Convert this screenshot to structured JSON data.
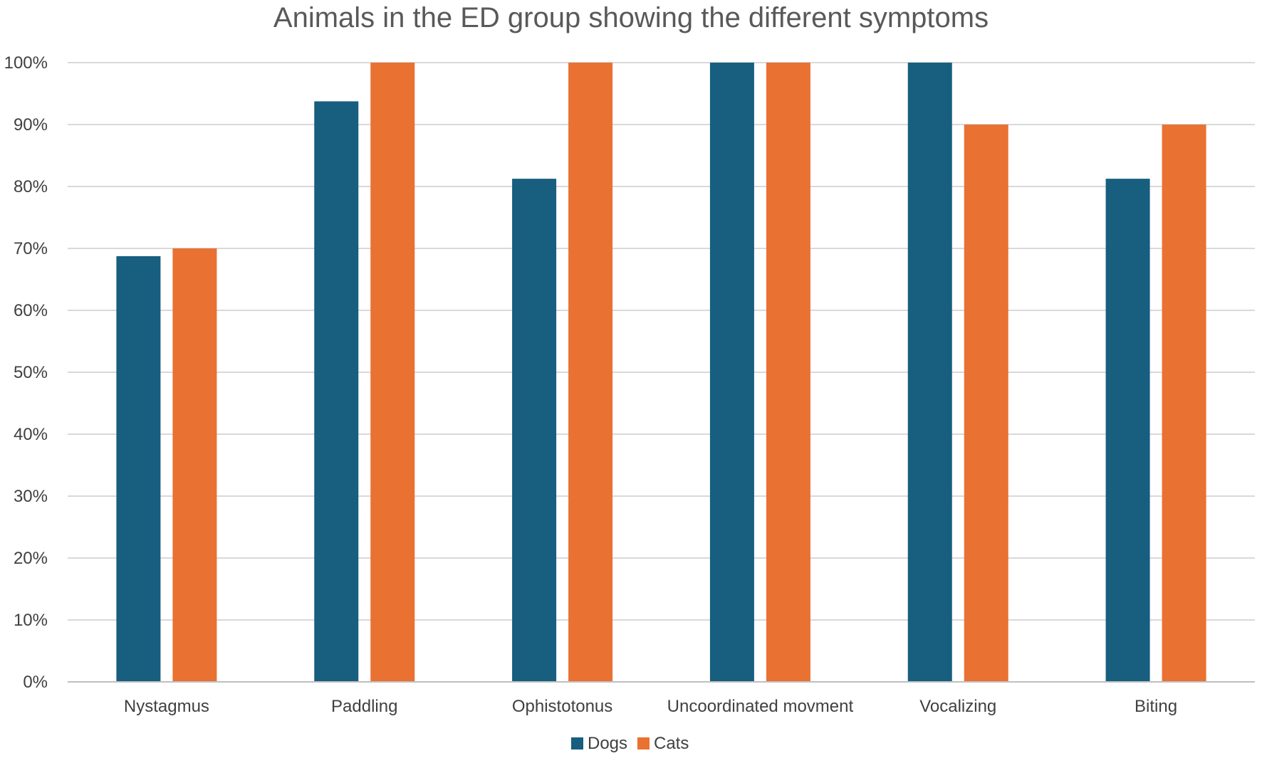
{
  "chart_data": {
    "type": "bar",
    "title": "Animals in the ED group showing the different symptoms",
    "xlabel": "",
    "ylabel": "",
    "categories": [
      "Nystagmus",
      "Paddling",
      "Ophistotonus",
      "Uncoordinated movment",
      "Vocalizing",
      "Biting"
    ],
    "series": [
      {
        "name": "Dogs",
        "color": "#175E7F",
        "values": [
          68.75,
          93.75,
          81.25,
          100,
          100,
          81.25
        ]
      },
      {
        "name": "Cats",
        "color": "#E97132",
        "values": [
          70,
          100,
          100,
          100,
          90,
          90
        ]
      }
    ],
    "ylim": [
      0,
      100
    ],
    "yticks": [
      0,
      10,
      20,
      30,
      40,
      50,
      60,
      70,
      80,
      90,
      100
    ],
    "ytick_labels": [
      "0%",
      "10%",
      "20%",
      "30%",
      "40%",
      "50%",
      "60%",
      "70%",
      "80%",
      "90%",
      "100%"
    ],
    "grid": true,
    "legend_position": "bottom"
  }
}
